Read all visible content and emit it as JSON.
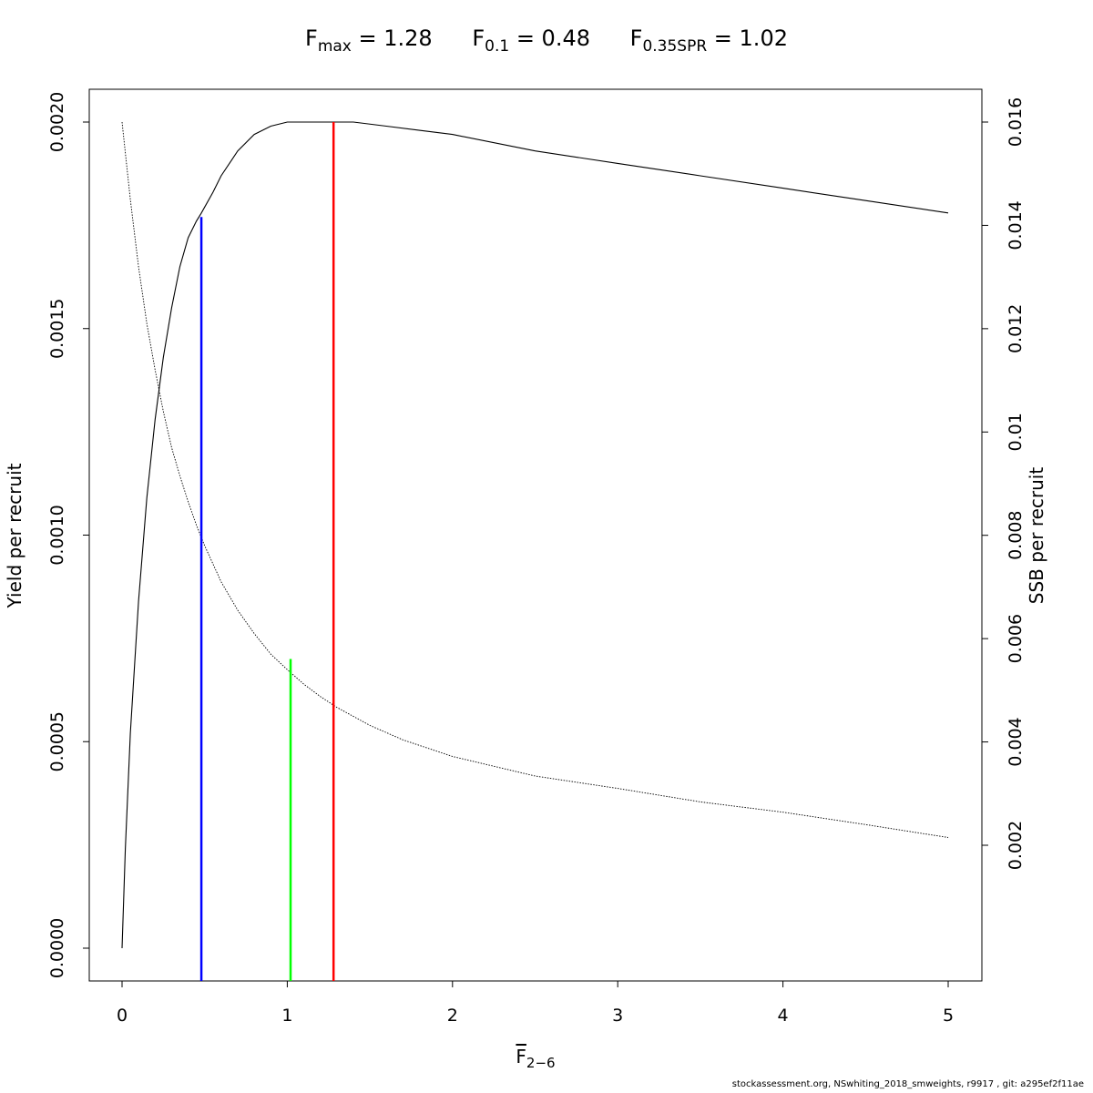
{
  "title": {
    "fmax_symbol": "F",
    "fmax_sub": "max",
    "fmax_value": " = 1.28",
    "f01_symbol": "F",
    "f01_sub": "0.1",
    "f01_value": " = 0.48",
    "fspr_symbol": "F",
    "fspr_sub": "0.35SPR",
    "fspr_value": " = 1.02"
  },
  "xlabel": {
    "symbol": "F",
    "sub": "2−6"
  },
  "footer": "stockassessment.org, NSwhiting_2018_smweights, r9917 , git: a295ef2f11ae",
  "chart_data": {
    "type": "line",
    "xlabel": "F̄ 2−6",
    "ylabel": "Yield per recruit",
    "y2label": "SSB per recruit",
    "xlim": [
      0,
      5
    ],
    "ylim": [
      -8e-05,
      0.00208
    ],
    "y2lim": [
      -0.00064,
      0.01664
    ],
    "x_ticks": [
      "0",
      "1",
      "2",
      "3",
      "4",
      "5"
    ],
    "y_ticks": [
      "0.0000",
      "0.0005",
      "0.0010",
      "0.0015",
      "0.0020"
    ],
    "y2_ticks": [
      "0.002",
      "0.004",
      "0.006",
      "0.008",
      "0.01",
      "0.012",
      "0.014",
      "0.016"
    ],
    "grid": false,
    "series": [
      {
        "name": "Yield per recruit",
        "axis": "left",
        "color": "#000000",
        "style": "solid",
        "x": [
          0,
          0.02,
          0.05,
          0.1,
          0.15,
          0.2,
          0.25,
          0.3,
          0.35,
          0.4,
          0.45,
          0.48,
          0.55,
          0.6,
          0.7,
          0.8,
          0.9,
          1.0,
          1.1,
          1.2,
          1.28,
          1.4,
          1.6,
          1.8,
          2.0,
          2.5,
          3.0,
          3.5,
          4.0,
          4.5,
          5.0
        ],
        "values": [
          0,
          0.00024,
          0.00052,
          0.00084,
          0.00109,
          0.00128,
          0.00143,
          0.00155,
          0.00165,
          0.00172,
          0.00176,
          0.00178,
          0.00183,
          0.00187,
          0.00193,
          0.00197,
          0.00199,
          0.002,
          0.002,
          0.002,
          0.002,
          0.002,
          0.00199,
          0.00198,
          0.00197,
          0.00193,
          0.0019,
          0.00187,
          0.00184,
          0.00181,
          0.00178
        ]
      },
      {
        "name": "SSB per recruit",
        "axis": "right",
        "color": "#000000",
        "style": "dotted",
        "x": [
          0,
          0.05,
          0.1,
          0.15,
          0.2,
          0.25,
          0.3,
          0.35,
          0.4,
          0.45,
          0.5,
          0.6,
          0.7,
          0.8,
          0.9,
          1.0,
          1.1,
          1.2,
          1.3,
          1.5,
          1.7,
          2.0,
          2.5,
          3.0,
          3.5,
          4.0,
          4.5,
          5.0
        ],
        "values": [
          0.016,
          0.0145,
          0.0132,
          0.0121,
          0.0112,
          0.0104,
          0.0097,
          0.00915,
          0.00865,
          0.0082,
          0.0078,
          0.0071,
          0.00655,
          0.0061,
          0.0057,
          0.0054,
          0.00512,
          0.00488,
          0.00467,
          0.00432,
          0.00404,
          0.00372,
          0.00334,
          0.0031,
          0.00284,
          0.00264,
          0.0024,
          0.00215
        ]
      }
    ],
    "reference_lines": [
      {
        "name": "F0.1",
        "x": 0.48,
        "y_top": 0.00177,
        "color": "#0000ff"
      },
      {
        "name": "F0.35SPR",
        "x": 1.02,
        "y_top": 0.0007,
        "color": "#00ff00"
      },
      {
        "name": "Fmax",
        "x": 1.28,
        "y_top": 0.002,
        "color": "#ff0000"
      }
    ]
  }
}
